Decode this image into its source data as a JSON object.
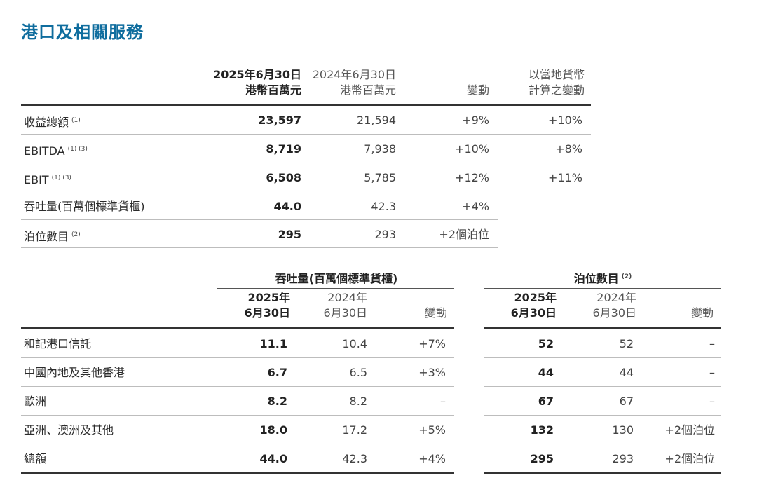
{
  "title": "港口及相關服務",
  "table1": {
    "headers": {
      "col1_line1": "2025年6月30日",
      "col1_line2": "港幣百萬元",
      "col2_line1": "2024年6月30日",
      "col2_line2": "港幣百萬元",
      "col3": "變動",
      "col4_line1": "以當地貨幣",
      "col4_line2": "計算之變動"
    },
    "rows": [
      {
        "label": "收益總額",
        "sup": "(1)",
        "v2025": "23,597",
        "v2024": "21,594",
        "change": "+9%",
        "local": "+10%"
      },
      {
        "label": "EBITDA",
        "sup": "(1) (3)",
        "v2025": "8,719",
        "v2024": "7,938",
        "change": "+10%",
        "local": "+8%"
      },
      {
        "label": "EBIT",
        "sup": "(1) (3)",
        "v2025": "6,508",
        "v2024": "5,785",
        "change": "+12%",
        "local": "+11%"
      },
      {
        "label": "吞吐量(百萬個標準貨櫃)",
        "sup": "",
        "v2025": "44.0",
        "v2024": "42.3",
        "change": "+4%",
        "local": ""
      },
      {
        "label": "泊位數目",
        "sup": "(2)",
        "v2025": "295",
        "v2024": "293",
        "change": "+2個泊位",
        "local": ""
      }
    ]
  },
  "table2": {
    "throughput_title": "吞吐量(百萬個標準貨櫃)",
    "berths_title": "泊位數目",
    "berths_sup": "(2)",
    "sub": {
      "y2025_line1": "2025年",
      "y2025_line2": "6月30日",
      "y2024_line1": "2024年",
      "y2024_line2": "6月30日",
      "change": "變動"
    },
    "rows": [
      {
        "label": "和記港口信託",
        "t2025": "11.1",
        "t2024": "10.4",
        "tchg": "+7%",
        "b2025": "52",
        "b2024": "52",
        "bchg": "–"
      },
      {
        "label": "中國內地及其他香港",
        "t2025": "6.7",
        "t2024": "6.5",
        "tchg": "+3%",
        "b2025": "44",
        "b2024": "44",
        "bchg": "–"
      },
      {
        "label": "歐洲",
        "t2025": "8.2",
        "t2024": "8.2",
        "tchg": "–",
        "b2025": "67",
        "b2024": "67",
        "bchg": "–"
      },
      {
        "label": "亞洲、澳洲及其他",
        "t2025": "18.0",
        "t2024": "17.2",
        "tchg": "+5%",
        "b2025": "132",
        "b2024": "130",
        "bchg": "+2個泊位"
      },
      {
        "label": "總額",
        "t2025": "44.0",
        "t2024": "42.3",
        "tchg": "+4%",
        "b2025": "295",
        "b2024": "293",
        "bchg": "+2個泊位"
      }
    ]
  }
}
